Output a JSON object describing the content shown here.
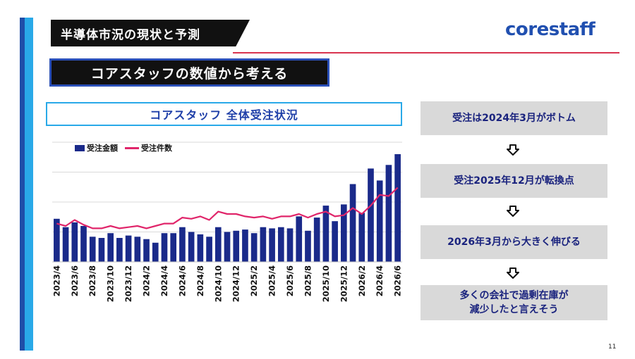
{
  "header": {
    "title": "半導体市況の現状と予測"
  },
  "logo": {
    "text": "corestaff"
  },
  "subtitle": "コアスタッフの数値から考える",
  "chart_title": "コアスタッフ 全体受注状況",
  "page_number": "11",
  "colors": {
    "bar": "#1a2a8a",
    "line": "#e0256a",
    "accent_blue": "#29a9e8",
    "accent_red": "#d9334f"
  },
  "steps": [
    "受注は2024年3月がボトム",
    "受注2025年12月が転換点",
    "2026年3月から大きく伸びる",
    "多くの会社で過剰在庫が\n減少したと言えそう"
  ],
  "chart_data": {
    "type": "bar",
    "title": "コアスタッフ 全体受注状況",
    "legend": [
      "受注金額",
      "受注件数"
    ],
    "legend_position": "top-left",
    "grid": true,
    "x": [
      "2023/4",
      "2023/5",
      "2023/6",
      "2023/7",
      "2023/8",
      "2023/9",
      "2023/10",
      "2023/11",
      "2023/12",
      "2024/1",
      "2024/2",
      "2024/3",
      "2024/4",
      "2024/5",
      "2024/6",
      "2024/7",
      "2024/8",
      "2024/9",
      "2024/10",
      "2024/11",
      "2024/12",
      "2025/1",
      "2025/2",
      "2025/3",
      "2025/4",
      "2025/5",
      "2025/6",
      "2025/7",
      "2025/8",
      "2025/9",
      "2025/10",
      "2025/11",
      "2025/12",
      "2026/1",
      "2026/2",
      "2026/3",
      "2026/4",
      "2026/5",
      "2026/6"
    ],
    "x_tick_labels": [
      "2023/4",
      "2023/6",
      "2023/8",
      "2023/10",
      "2023/12",
      "2024/2",
      "2024/4",
      "2024/6",
      "2024/8",
      "2024/10",
      "2024/12",
      "2025/2",
      "2025/4",
      "2025/6",
      "2025/8",
      "2025/10",
      "2025/12",
      "2026/2",
      "2026/4",
      "2026/6"
    ],
    "series": [
      {
        "name": "受注金額",
        "kind": "bar",
        "values": [
          36,
          29,
          33,
          30,
          21,
          20,
          24,
          20,
          22,
          21,
          19,
          16,
          24,
          24,
          29,
          25,
          23,
          21,
          29,
          25,
          26,
          27,
          24,
          29,
          28,
          29,
          28,
          38,
          26,
          37,
          47,
          34,
          48,
          65,
          41,
          78,
          68,
          81,
          90
        ]
      },
      {
        "name": "受注件数",
        "kind": "line",
        "values": [
          32,
          30,
          35,
          31,
          28,
          28,
          30,
          28,
          29,
          30,
          28,
          30,
          32,
          32,
          37,
          36,
          38,
          35,
          42,
          40,
          40,
          38,
          37,
          38,
          36,
          38,
          38,
          40,
          37,
          40,
          42,
          38,
          39,
          45,
          40,
          47,
          56,
          55,
          62
        ]
      }
    ],
    "ylim": [
      0,
      100
    ]
  }
}
